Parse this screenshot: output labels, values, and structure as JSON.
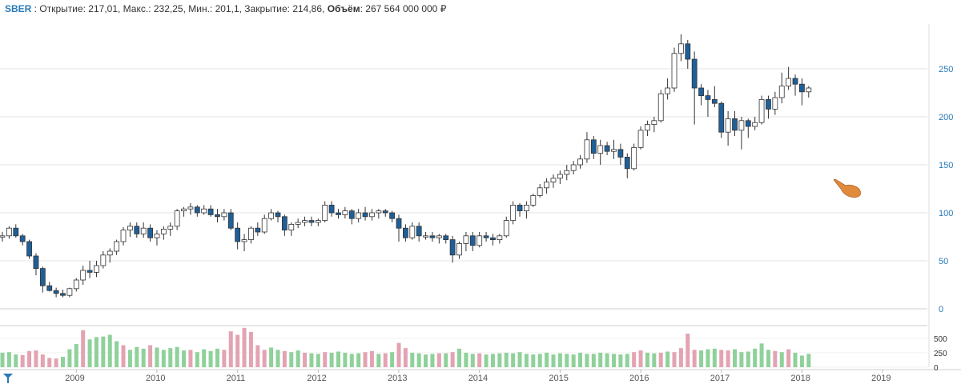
{
  "header": {
    "ticker": "SBER",
    "sep": " : ",
    "open_label": "Открытие:",
    "open_value": "217,01",
    "high_label": "Макс.:",
    "high_value": "232,25",
    "low_label": "Мин.:",
    "low_value": "201,1",
    "close_label": "Закрытие:",
    "close_value": "214,86",
    "volume_label": "Объём",
    "volume_value": "267 564 000 000 ₽"
  },
  "colors": {
    "up_fill": "#ffffff",
    "down_fill": "#1f5f99",
    "candle_stroke": "#333333",
    "vol_up": "#8fd19a",
    "vol_down": "#e3a3b3",
    "grid": "#e6e6e6",
    "axis_text": "#2a7ab8",
    "crosshair": "#999999",
    "cursor": "#e08a3c"
  },
  "chart_data": {
    "type": "candlestick",
    "y_ticks": [
      0,
      50,
      100,
      150,
      200,
      250
    ],
    "ylim": [
      0,
      290
    ],
    "volume_ticks": [
      "500",
      "250",
      "0"
    ],
    "volume_ylim": [
      0,
      650
    ],
    "x_labels": [
      "2009",
      "2010",
      "2011",
      "2012",
      "2013",
      "2014",
      "2015",
      "2016",
      "2017",
      "2018",
      "2019"
    ],
    "crosshair_index": 151,
    "candles": [
      [
        76,
        80,
        70,
        76
      ],
      [
        76,
        86,
        73,
        84
      ],
      [
        84,
        88,
        74,
        76
      ],
      [
        76,
        78,
        66,
        70
      ],
      [
        70,
        72,
        52,
        55
      ],
      [
        55,
        58,
        35,
        42
      ],
      [
        42,
        44,
        17,
        24
      ],
      [
        24,
        28,
        18,
        19
      ],
      [
        19,
        22,
        12,
        16
      ],
      [
        16,
        20,
        12,
        14
      ],
      [
        14,
        22,
        12,
        21
      ],
      [
        21,
        32,
        18,
        30
      ],
      [
        30,
        45,
        25,
        40
      ],
      [
        40,
        50,
        32,
        38
      ],
      [
        38,
        50,
        33,
        45
      ],
      [
        45,
        60,
        42,
        56
      ],
      [
        56,
        63,
        48,
        60
      ],
      [
        60,
        72,
        56,
        70
      ],
      [
        70,
        85,
        66,
        82
      ],
      [
        82,
        90,
        75,
        86
      ],
      [
        86,
        90,
        74,
        78
      ],
      [
        78,
        90,
        74,
        84
      ],
      [
        84,
        88,
        70,
        74
      ],
      [
        74,
        82,
        66,
        78
      ],
      [
        78,
        86,
        72,
        83
      ],
      [
        83,
        90,
        76,
        86
      ],
      [
        86,
        104,
        82,
        102
      ],
      [
        102,
        106,
        96,
        104
      ],
      [
        104,
        110,
        98,
        106
      ],
      [
        106,
        108,
        96,
        100
      ],
      [
        100,
        108,
        98,
        104
      ],
      [
        104,
        108,
        96,
        98
      ],
      [
        98,
        104,
        90,
        96
      ],
      [
        96,
        104,
        92,
        100
      ],
      [
        100,
        104,
        82,
        84
      ],
      [
        84,
        90,
        62,
        70
      ],
      [
        70,
        78,
        60,
        72
      ],
      [
        72,
        86,
        68,
        84
      ],
      [
        84,
        90,
        76,
        80
      ],
      [
        80,
        98,
        78,
        94
      ],
      [
        94,
        104,
        92,
        100
      ],
      [
        100,
        102,
        90,
        96
      ],
      [
        96,
        98,
        76,
        82
      ],
      [
        82,
        90,
        76,
        88
      ],
      [
        88,
        94,
        84,
        90
      ],
      [
        90,
        96,
        86,
        92
      ],
      [
        92,
        96,
        86,
        90
      ],
      [
        90,
        94,
        86,
        92
      ],
      [
        92,
        112,
        90,
        108
      ],
      [
        108,
        112,
        96,
        100
      ],
      [
        100,
        104,
        94,
        98
      ],
      [
        98,
        106,
        94,
        102
      ],
      [
        102,
        104,
        88,
        94
      ],
      [
        94,
        104,
        90,
        100
      ],
      [
        100,
        106,
        92,
        96
      ],
      [
        96,
        104,
        92,
        100
      ],
      [
        100,
        104,
        94,
        102
      ],
      [
        102,
        104,
        96,
        100
      ],
      [
        100,
        102,
        90,
        94
      ],
      [
        94,
        98,
        70,
        84
      ],
      [
        84,
        88,
        70,
        74
      ],
      [
        74,
        90,
        72,
        86
      ],
      [
        86,
        90,
        70,
        76
      ],
      [
        76,
        80,
        72,
        76
      ],
      [
        76,
        80,
        70,
        74
      ],
      [
        74,
        78,
        68,
        76
      ],
      [
        76,
        78,
        68,
        72
      ],
      [
        72,
        76,
        48,
        56
      ],
      [
        56,
        70,
        52,
        68
      ],
      [
        68,
        80,
        60,
        76
      ],
      [
        76,
        80,
        60,
        66
      ],
      [
        66,
        80,
        64,
        76
      ],
      [
        76,
        80,
        70,
        74
      ],
      [
        74,
        78,
        66,
        72
      ],
      [
        72,
        78,
        68,
        76
      ],
      [
        76,
        96,
        74,
        92
      ],
      [
        92,
        112,
        88,
        108
      ],
      [
        108,
        110,
        96,
        102
      ],
      [
        102,
        112,
        94,
        108
      ],
      [
        108,
        120,
        106,
        118
      ],
      [
        118,
        130,
        116,
        126
      ],
      [
        126,
        136,
        120,
        132
      ],
      [
        132,
        140,
        126,
        136
      ],
      [
        136,
        144,
        130,
        140
      ],
      [
        140,
        150,
        134,
        144
      ],
      [
        144,
        154,
        140,
        150
      ],
      [
        150,
        160,
        146,
        156
      ],
      [
        156,
        184,
        152,
        176
      ],
      [
        176,
        180,
        156,
        162
      ],
      [
        162,
        176,
        150,
        170
      ],
      [
        170,
        174,
        160,
        164
      ],
      [
        164,
        176,
        156,
        166
      ],
      [
        166,
        172,
        150,
        158
      ],
      [
        158,
        162,
        136,
        146
      ],
      [
        146,
        172,
        144,
        168
      ],
      [
        168,
        190,
        166,
        186
      ],
      [
        186,
        196,
        180,
        192
      ],
      [
        192,
        200,
        184,
        196
      ],
      [
        196,
        228,
        194,
        224
      ],
      [
        224,
        240,
        218,
        230
      ],
      [
        230,
        272,
        226,
        266
      ],
      [
        266,
        286,
        258,
        276
      ],
      [
        276,
        280,
        250,
        260
      ],
      [
        260,
        268,
        192,
        230
      ],
      [
        230,
        234,
        212,
        222
      ],
      [
        222,
        228,
        200,
        218
      ],
      [
        218,
        232,
        210,
        214
      ],
      [
        214,
        216,
        178,
        184
      ],
      [
        184,
        206,
        170,
        198
      ],
      [
        198,
        206,
        180,
        186
      ],
      [
        186,
        200,
        166,
        196
      ],
      [
        196,
        198,
        178,
        190
      ],
      [
        190,
        200,
        186,
        194
      ],
      [
        194,
        222,
        192,
        218
      ],
      [
        218,
        222,
        198,
        208
      ],
      [
        208,
        226,
        202,
        220
      ],
      [
        220,
        246,
        214,
        232
      ],
      [
        232,
        252,
        228,
        240
      ],
      [
        240,
        244,
        222,
        234
      ],
      [
        234,
        240,
        212,
        226
      ],
      [
        226,
        232,
        220,
        230
      ]
    ],
    "volumes": [
      [
        250,
        0
      ],
      [
        260,
        0
      ],
      [
        220,
        0
      ],
      [
        210,
        1
      ],
      [
        280,
        1
      ],
      [
        290,
        1
      ],
      [
        220,
        1
      ],
      [
        160,
        1
      ],
      [
        150,
        1
      ],
      [
        180,
        0
      ],
      [
        310,
        0
      ],
      [
        400,
        0
      ],
      [
        640,
        1
      ],
      [
        480,
        0
      ],
      [
        520,
        0
      ],
      [
        530,
        0
      ],
      [
        560,
        0
      ],
      [
        450,
        0
      ],
      [
        380,
        1
      ],
      [
        300,
        0
      ],
      [
        350,
        0
      ],
      [
        320,
        0
      ],
      [
        380,
        1
      ],
      [
        340,
        0
      ],
      [
        300,
        0
      ],
      [
        330,
        0
      ],
      [
        350,
        0
      ],
      [
        290,
        0
      ],
      [
        300,
        1
      ],
      [
        260,
        0
      ],
      [
        310,
        0
      ],
      [
        280,
        0
      ],
      [
        320,
        0
      ],
      [
        300,
        1
      ],
      [
        620,
        1
      ],
      [
        560,
        1
      ],
      [
        680,
        1
      ],
      [
        610,
        1
      ],
      [
        380,
        1
      ],
      [
        300,
        1
      ],
      [
        340,
        0
      ],
      [
        300,
        0
      ],
      [
        280,
        1
      ],
      [
        260,
        0
      ],
      [
        290,
        0
      ],
      [
        250,
        1
      ],
      [
        240,
        0
      ],
      [
        230,
        0
      ],
      [
        260,
        1
      ],
      [
        250,
        0
      ],
      [
        270,
        0
      ],
      [
        250,
        0
      ],
      [
        230,
        0
      ],
      [
        240,
        0
      ],
      [
        260,
        1
      ],
      [
        280,
        1
      ],
      [
        230,
        0
      ],
      [
        240,
        1
      ],
      [
        260,
        0
      ],
      [
        420,
        1
      ],
      [
        330,
        1
      ],
      [
        250,
        0
      ],
      [
        240,
        0
      ],
      [
        220,
        0
      ],
      [
        230,
        0
      ],
      [
        240,
        1
      ],
      [
        240,
        0
      ],
      [
        260,
        1
      ],
      [
        320,
        0
      ],
      [
        250,
        0
      ],
      [
        230,
        0
      ],
      [
        240,
        1
      ],
      [
        220,
        0
      ],
      [
        230,
        0
      ],
      [
        240,
        0
      ],
      [
        250,
        0
      ],
      [
        240,
        0
      ],
      [
        260,
        0
      ],
      [
        230,
        0
      ],
      [
        220,
        0
      ],
      [
        230,
        0
      ],
      [
        250,
        0
      ],
      [
        220,
        0
      ],
      [
        240,
        0
      ],
      [
        230,
        0
      ],
      [
        220,
        0
      ],
      [
        250,
        0
      ],
      [
        230,
        0
      ],
      [
        230,
        0
      ],
      [
        250,
        0
      ],
      [
        240,
        0
      ],
      [
        230,
        0
      ],
      [
        220,
        0
      ],
      [
        230,
        0
      ],
      [
        260,
        1
      ],
      [
        290,
        1
      ],
      [
        250,
        0
      ],
      [
        240,
        0
      ],
      [
        250,
        1
      ],
      [
        270,
        0
      ],
      [
        260,
        1
      ],
      [
        330,
        1
      ],
      [
        580,
        1
      ],
      [
        300,
        1
      ],
      [
        290,
        0
      ],
      [
        310,
        0
      ],
      [
        320,
        0
      ],
      [
        300,
        1
      ],
      [
        290,
        1
      ],
      [
        310,
        0
      ],
      [
        260,
        0
      ],
      [
        270,
        0
      ],
      [
        320,
        0
      ],
      [
        410,
        0
      ],
      [
        300,
        0
      ],
      [
        280,
        1
      ],
      [
        260,
        0
      ],
      [
        310,
        1
      ],
      [
        250,
        0
      ],
      [
        200,
        0
      ],
      [
        230,
        0
      ]
    ]
  }
}
